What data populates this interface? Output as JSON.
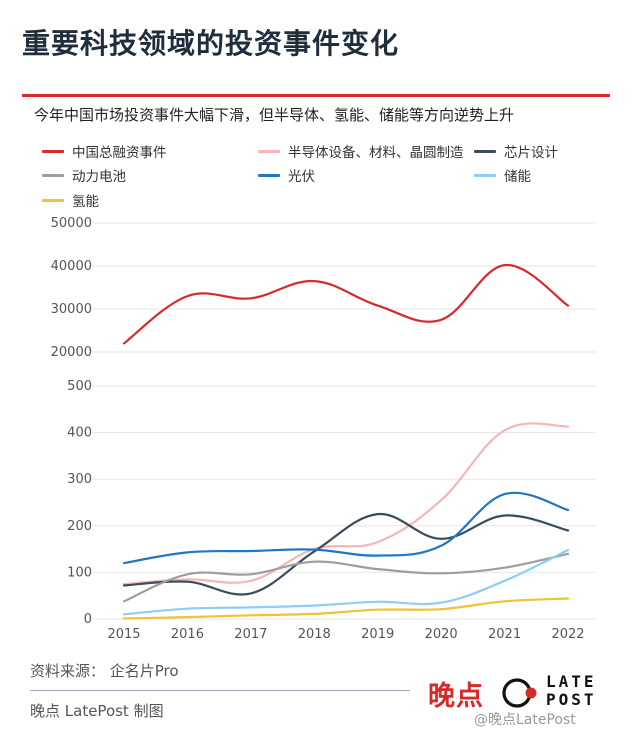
{
  "header": {
    "title": "重要科技领域的投资事件变化",
    "subtitle": "今年中国市场投资事件大幅下滑，但半导体、氢能、储能等方向逆势上升"
  },
  "colors": {
    "accent": "#d62b2b",
    "axis_text": "#555555",
    "grid": "#e6e6e6"
  },
  "chart_data": {
    "type": "line",
    "legend_position": "top",
    "x": [
      "2015",
      "2016",
      "2017",
      "2018",
      "2019",
      "2020",
      "2021",
      "2022"
    ],
    "panels": [
      {
        "id": "top",
        "ylim": [
          20000,
          50000
        ],
        "yticks": [
          "50000",
          "40000",
          "30000",
          "20000"
        ],
        "series": [
          {
            "name": "中国总融资事件",
            "color": "#d62b2b",
            "values": [
              22000,
              33000,
              32500,
              36500,
              30800,
              27500,
              40200,
              30800
            ]
          }
        ]
      },
      {
        "id": "bottom",
        "ylim": [
          0,
          500
        ],
        "yticks": [
          "500",
          "400",
          "300",
          "200",
          "100",
          "0"
        ],
        "series": [
          {
            "name": "半导体设备、材料、晶圆制造",
            "color": "#f4b6b6",
            "values": [
              75,
              85,
              82,
              150,
              165,
              255,
              405,
              413
            ]
          },
          {
            "name": "芯片设计",
            "color": "#3a4b5c",
            "values": [
              72,
              80,
              55,
              145,
              225,
              172,
              222,
              190
            ]
          },
          {
            "name": "动力电池",
            "color": "#9e9e9e",
            "values": [
              38,
              96,
              96,
              123,
              107,
              98,
              110,
              140
            ]
          },
          {
            "name": "光伏",
            "color": "#1f77c4",
            "values": [
              120,
              143,
              146,
              149,
              136,
              157,
              268,
              234
            ]
          },
          {
            "name": "储能",
            "color": "#8ecdf5",
            "values": [
              10,
              22,
              25,
              29,
              37,
              35,
              82,
              148
            ]
          },
          {
            "name": "氢能",
            "color": "#f2c232",
            "values": [
              1,
              4,
              8,
              11,
              20,
              21,
              38,
              44
            ]
          }
        ]
      }
    ]
  },
  "legend": [
    {
      "label": "中国总融资事件",
      "color": "#d62b2b"
    },
    {
      "label": "半导体设备、材料、晶圆制造",
      "color": "#f4b6b6"
    },
    {
      "label": "芯片设计",
      "color": "#3a4b5c"
    },
    {
      "label": "动力电池",
      "color": "#9e9e9e"
    },
    {
      "label": "光伏",
      "color": "#1f77c4"
    },
    {
      "label": "储能",
      "color": "#8ecdf5"
    },
    {
      "label": "氢能",
      "color": "#f2c232"
    }
  ],
  "footer": {
    "source": "资料来源：  企名片Pro",
    "credit": "晚点 LatePost  制图",
    "brand_cn": "晚点",
    "brand_late": "LATE",
    "brand_post": "POST",
    "watermark": "@晚点LatePost"
  }
}
